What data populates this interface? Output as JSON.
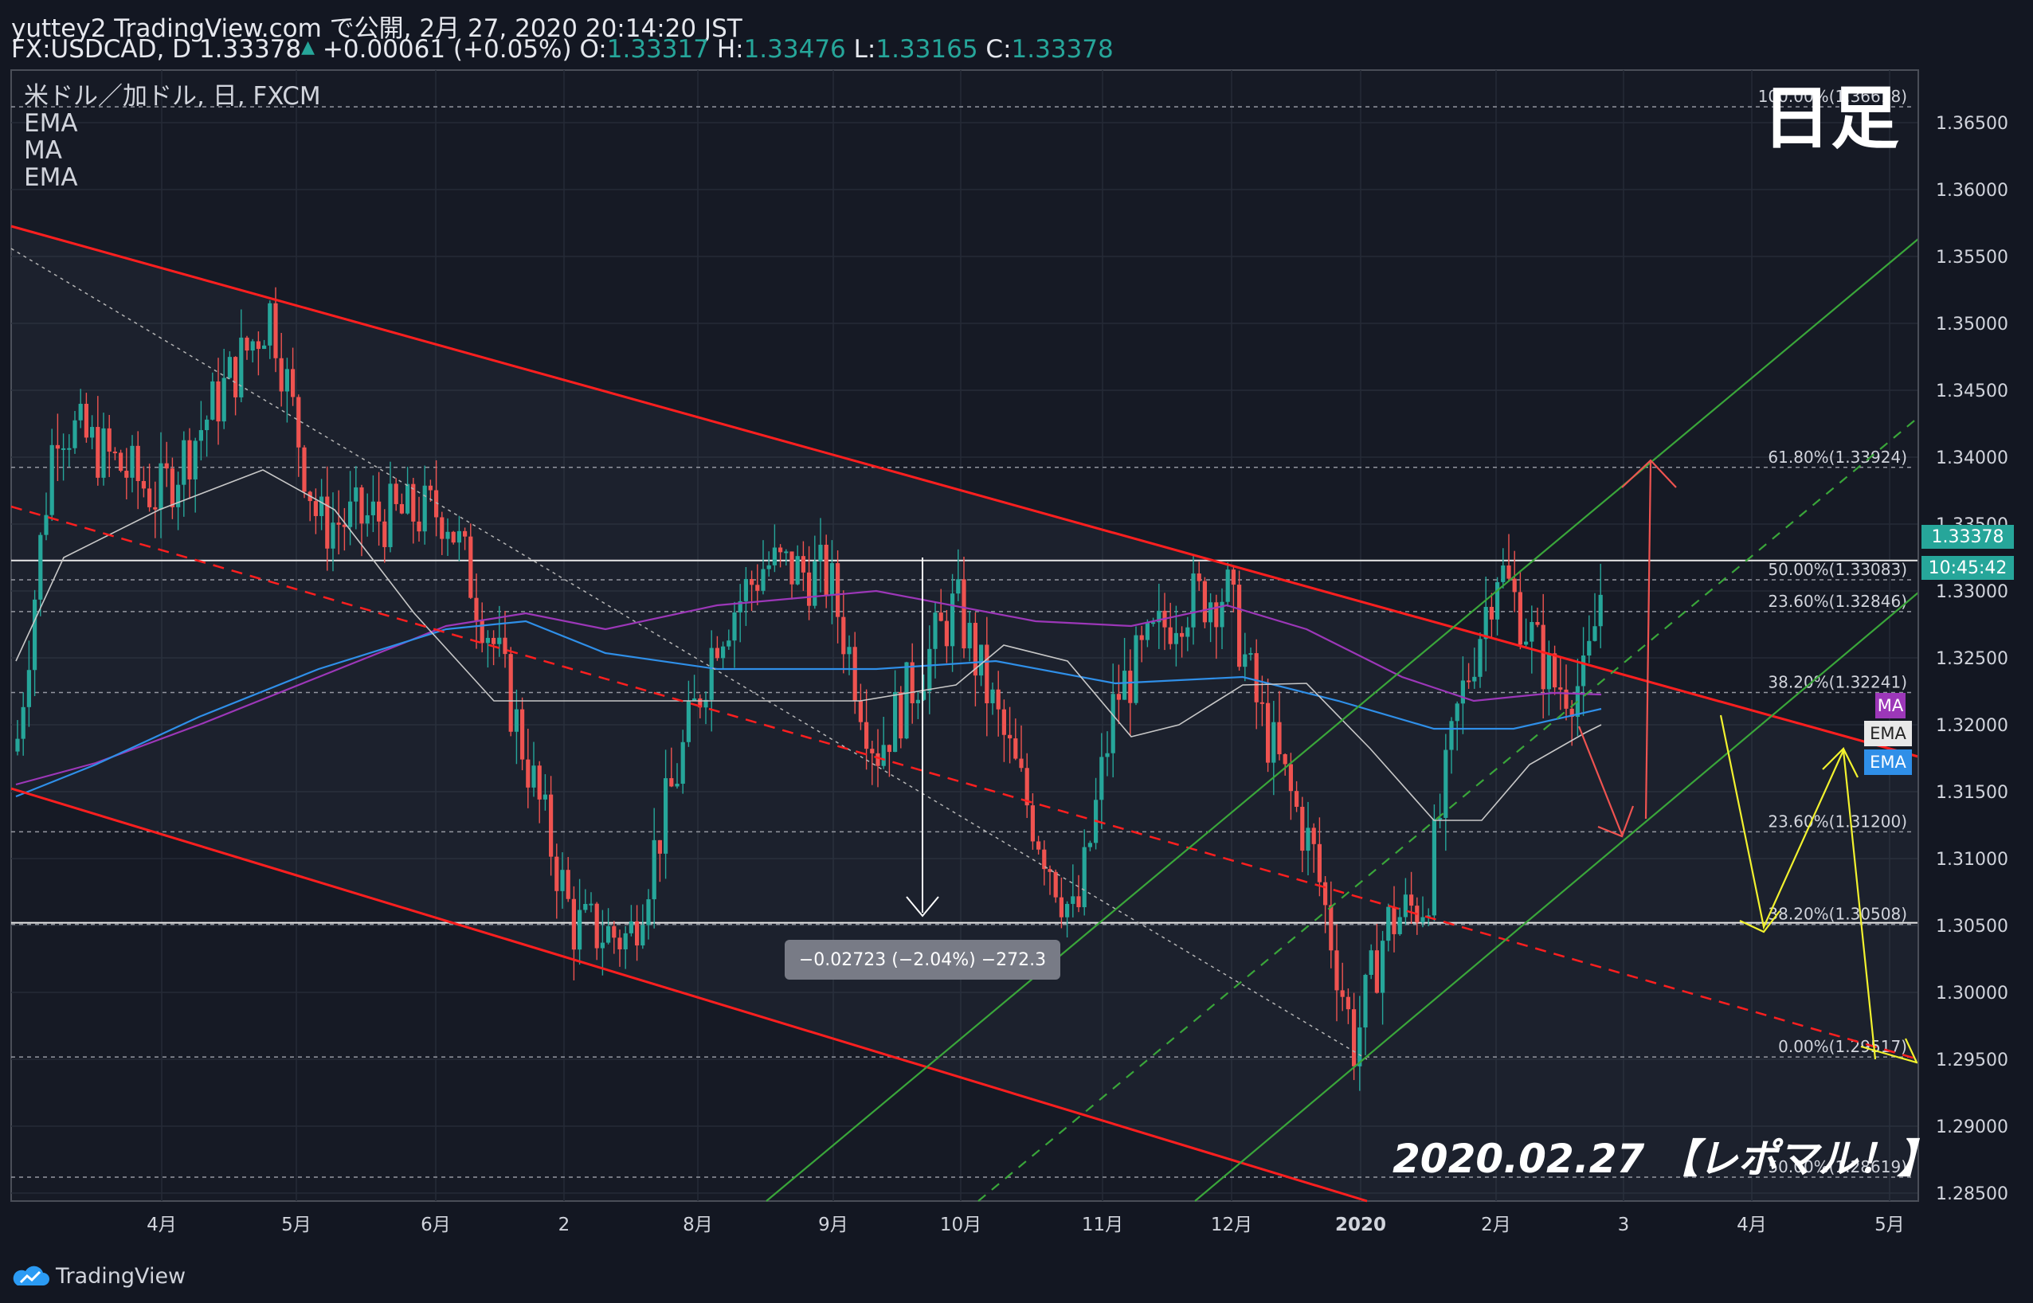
{
  "header": {
    "publish_line": "yuttey2 TradingView.com で公開, 2月 27, 2020 20:14:20 JST",
    "symbol": "FX:USDCAD, D",
    "last": "1.33378",
    "change": "+0.00061 (+0.05%)",
    "o_label": "O:",
    "o": "1.33317",
    "h_label": "H:",
    "h": "1.33476",
    "l_label": "L:",
    "l": "1.33165",
    "c_label": "C:",
    "c": "1.33378"
  },
  "legend": {
    "series_title": "米ドル／加ドル, 日, FXCM",
    "indicators": [
      "EMA",
      "MA",
      "EMA"
    ]
  },
  "overlay": {
    "timeframe": "日足",
    "stamp": "2020.02.27 【レポマル！】",
    "measure_label": "−0.02723 (−2.04%) −272.3"
  },
  "price_tags": {
    "last_price": "1.33378",
    "countdown": "10:45:42",
    "ma": "MA",
    "ema1": "EMA",
    "ema2": "EMA"
  },
  "colors": {
    "background": "#131722",
    "up": "#26a69a",
    "down": "#ef5350",
    "channel": "#ff1f1f",
    "uptrend": "#3aa63a",
    "forecast_yellow": "#f2f22e",
    "ema_fast": "#c8c8c8",
    "ema_slow": "#2f8fe8",
    "ma": "#9c37b8"
  },
  "branding": {
    "name": "TradingView"
  },
  "chart_data": {
    "type": "candlestick",
    "symbol": "FX:USDCAD",
    "interval": "D",
    "price_axis": {
      "ticks": [
        "1.36500",
        "1.36000",
        "1.35500",
        "1.35000",
        "1.34500",
        "1.34000",
        "1.33500",
        "1.33000",
        "1.32500",
        "1.32000",
        "1.31500",
        "1.31000",
        "1.30500",
        "1.30000",
        "1.29500",
        "1.29000",
        "1.28500"
      ],
      "range": [
        1.28437,
        1.36902
      ]
    },
    "time_axis": {
      "labels": [
        "4月",
        "5月",
        "6月",
        "2",
        "8月",
        "9月",
        "10月",
        "11月",
        "12月",
        "2020",
        "2月",
        "3",
        "4月",
        "5月"
      ]
    },
    "fib_levels_upper": [
      {
        "label": "100.00%(1.36618)",
        "price": 1.36618
      },
      {
        "label": "61.80%(1.33924)",
        "price": 1.33924
      },
      {
        "label": "50.00%(1.33083)",
        "price": 1.33083
      },
      {
        "label": "23.60%(1.32846)",
        "price": 1.32846
      },
      {
        "label": "38.20%(1.32241)",
        "price": 1.32241
      }
    ],
    "fib_levels_lower": [
      {
        "label": "23.60%(1.31200)",
        "price": 1.312
      },
      {
        "label": "38.20%(1.30508)",
        "price": 1.30508
      },
      {
        "label": "0.00%(1.29517)",
        "price": 1.29517
      },
      {
        "label": "50.00%(1.28619)",
        "price": 1.28619
      }
    ],
    "horizontal_lines": [
      1.33228,
      1.3052
    ],
    "last_price": 1.33378
  }
}
